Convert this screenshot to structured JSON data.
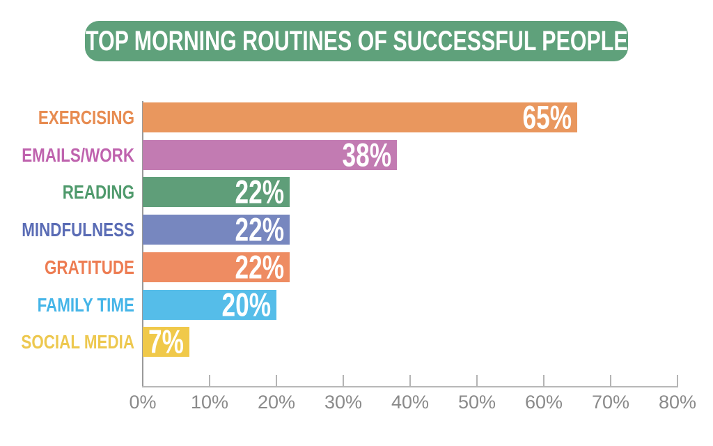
{
  "banner": {
    "background_color": "#5fa17b",
    "text_color": "#ffffff"
  },
  "axis": {
    "y_line_color": "#9a9a9a",
    "x_line_color": "#b8b8b8",
    "tick_color": "#b4b4b4",
    "tick_text_color": "#8a8a8a"
  },
  "chart_data": {
    "type": "bar",
    "orientation": "horizontal",
    "title": "TOP MORNING ROUTINES OF SUCCESSFUL PEOPLE",
    "categories": [
      "EXERCISING",
      "EMAILS/WORK",
      "READING",
      "MINDFULNESS",
      "GRATITUDE",
      "FAMILY TIME",
      "SOCIAL MEDIA"
    ],
    "values": [
      65,
      38,
      22,
      22,
      22,
      20,
      7
    ],
    "value_labels": [
      "65%",
      "38%",
      "22%",
      "22%",
      "22%",
      "20%",
      "7%"
    ],
    "bar_colors": [
      "#e9975e",
      "#c27bb2",
      "#5f9e79",
      "#7787bf",
      "#ee8c62",
      "#55bde9",
      "#f0c94a"
    ],
    "label_colors": [
      "#e78b50",
      "#bf63ae",
      "#4f9a6c",
      "#5a6cb5",
      "#ed7c52",
      "#45b5e8",
      "#edc84f"
    ],
    "value_text_color": "#ffffff",
    "xlabel": "",
    "ylabel": "",
    "xlim": [
      0,
      80
    ],
    "x_ticks": [
      "0%",
      "10%",
      "20%",
      "30%",
      "40%",
      "50%",
      "60%",
      "70%",
      "80%"
    ],
    "x_tick_values": [
      0,
      10,
      20,
      30,
      40,
      50,
      60,
      70,
      80
    ],
    "grid": false,
    "legend": false
  }
}
